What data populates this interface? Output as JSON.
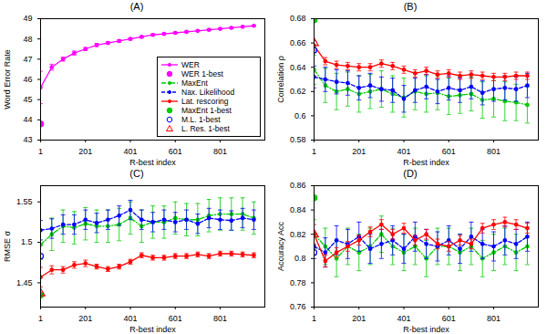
{
  "chart_data": [
    {
      "type": "line",
      "title": "(A)",
      "x_label": "R-best index",
      "y_label": "Word Error Rate",
      "xlim": [
        1,
        1000
      ],
      "xticks": [
        1,
        201,
        401,
        601,
        801
      ],
      "ylim": [
        43,
        49
      ],
      "yticks": [
        43,
        44,
        45,
        46,
        47,
        48,
        49
      ],
      "legend": "east",
      "x": [
        1,
        51,
        101,
        151,
        201,
        251,
        301,
        351,
        401,
        451,
        501,
        551,
        601,
        651,
        701,
        751,
        801,
        851,
        901,
        951
      ],
      "series": [
        {
          "name": "WER",
          "color": "#ff00ff",
          "line_style": "solid",
          "marker": "circle",
          "values": [
            45.6,
            46.6,
            47.0,
            47.3,
            47.5,
            47.7,
            47.8,
            47.9,
            48.0,
            48.1,
            48.2,
            48.25,
            48.3,
            48.35,
            48.4,
            48.45,
            48.5,
            48.55,
            48.6,
            48.65
          ],
          "errors": [
            0.8,
            0.15,
            0.1,
            0.1,
            0.08,
            0.08,
            0.06,
            0.06,
            0.05,
            0.05,
            0.05,
            0.04,
            0.04,
            0.04,
            0.03,
            0.03,
            0.03,
            0.03,
            0.02,
            0.02
          ]
        },
        {
          "name": "WER 1-best",
          "type": "scatter",
          "color": "#ff00ff",
          "marker": "circle",
          "x": [
            1
          ],
          "values": [
            43.8
          ]
        }
      ]
    },
    {
      "type": "line",
      "title": "(B)",
      "x_label": "R-best index",
      "y_label": "Correlation ρ",
      "xlim": [
        1,
        1000
      ],
      "xticks": [
        1,
        201,
        401,
        601,
        801
      ],
      "ylim": [
        0.58,
        0.68
      ],
      "yticks": [
        0.58,
        0.6,
        0.62,
        0.64,
        0.66,
        0.68
      ],
      "x": [
        1,
        51,
        101,
        151,
        201,
        251,
        301,
        351,
        401,
        451,
        501,
        551,
        601,
        651,
        701,
        751,
        801,
        851,
        901,
        951
      ],
      "series": [
        {
          "name": "MaxEnt",
          "color": "#00cc00",
          "line_style": "dashdot",
          "marker": "circle",
          "values": [
            0.638,
            0.625,
            0.62,
            0.622,
            0.618,
            0.62,
            0.622,
            0.618,
            0.615,
            0.62,
            0.618,
            0.619,
            0.616,
            0.617,
            0.618,
            0.613,
            0.614,
            0.612,
            0.611,
            0.609
          ],
          "errors": [
            0.012,
            0.014,
            0.015,
            0.014,
            0.015,
            0.014,
            0.015,
            0.015,
            0.016,
            0.015,
            0.015,
            0.014,
            0.015,
            0.015,
            0.014,
            0.015,
            0.015,
            0.016,
            0.015,
            0.015
          ]
        },
        {
          "name": "Nax. Likelihood",
          "color": "#0000ff",
          "line_style": "dashed",
          "marker": "circle",
          "values": [
            0.632,
            0.63,
            0.628,
            0.627,
            0.623,
            0.625,
            0.622,
            0.621,
            0.614,
            0.621,
            0.624,
            0.62,
            0.623,
            0.621,
            0.624,
            0.619,
            0.622,
            0.623,
            0.622,
            0.625
          ],
          "errors": [
            0.009,
            0.01,
            0.01,
            0.01,
            0.01,
            0.01,
            0.01,
            0.01,
            0.011,
            0.01,
            0.01,
            0.01,
            0.01,
            0.01,
            0.01,
            0.01,
            0.01,
            0.01,
            0.01,
            0.01
          ]
        },
        {
          "name": "Lat. rescoring",
          "color": "#ff0000",
          "line_style": "solid",
          "marker": "circle",
          "values": [
            0.658,
            0.645,
            0.642,
            0.641,
            0.64,
            0.64,
            0.643,
            0.641,
            0.638,
            0.635,
            0.637,
            0.634,
            0.635,
            0.633,
            0.634,
            0.633,
            0.632,
            0.632,
            0.633,
            0.633
          ],
          "errors": [
            0.004,
            0.003,
            0.003,
            0.003,
            0.003,
            0.003,
            0.003,
            0.003,
            0.003,
            0.003,
            0.003,
            0.003,
            0.003,
            0.003,
            0.003,
            0.003,
            0.003,
            0.003,
            0.003,
            0.003
          ]
        },
        {
          "name": "MaxEnt 1-best",
          "type": "scatter",
          "color": "#00cc00",
          "marker": "circle",
          "x": [
            1
          ],
          "values": [
            0.679
          ]
        },
        {
          "name": "M.L. 1-best",
          "type": "scatter",
          "color": "#0000ff",
          "marker": "open-circle",
          "x": [
            1
          ],
          "values": [
            0.654
          ]
        },
        {
          "name": "L. Res. 1-best",
          "type": "scatter",
          "color": "#ff0000",
          "marker": "open-triangle",
          "x": [
            1
          ],
          "values": [
            0.66
          ]
        }
      ]
    },
    {
      "type": "line",
      "title": "(C)",
      "x_label": "R-best index",
      "y_label": "RMSE σ",
      "xlim": [
        1,
        1000
      ],
      "xticks": [
        1,
        201,
        401,
        601,
        801
      ],
      "ylim": [
        1.42,
        1.57
      ],
      "yticks": [
        1.45,
        1.5,
        1.55
      ],
      "x": [
        1,
        51,
        101,
        151,
        201,
        251,
        301,
        351,
        401,
        451,
        501,
        551,
        601,
        651,
        701,
        751,
        801,
        851,
        901,
        951
      ],
      "series": [
        {
          "name": "MaxEnt",
          "color": "#00cc00",
          "line_style": "dashdot",
          "marker": "circle",
          "values": [
            1.497,
            1.51,
            1.52,
            1.518,
            1.523,
            1.52,
            1.52,
            1.522,
            1.53,
            1.52,
            1.525,
            1.525,
            1.53,
            1.528,
            1.528,
            1.533,
            1.535,
            1.535,
            1.535,
            1.53
          ],
          "errors": [
            0.018,
            0.02,
            0.02,
            0.02,
            0.02,
            0.02,
            0.02,
            0.02,
            0.02,
            0.02,
            0.02,
            0.02,
            0.02,
            0.02,
            0.02,
            0.02,
            0.02,
            0.02,
            0.02,
            0.02
          ]
        },
        {
          "name": "Nax. Likelihood",
          "color": "#0000ff",
          "line_style": "dashed",
          "marker": "circle",
          "values": [
            1.515,
            1.517,
            1.522,
            1.522,
            1.528,
            1.524,
            1.528,
            1.533,
            1.54,
            1.528,
            1.525,
            1.528,
            1.525,
            1.528,
            1.523,
            1.53,
            1.528,
            1.527,
            1.53,
            1.528
          ],
          "errors": [
            0.012,
            0.012,
            0.012,
            0.012,
            0.012,
            0.012,
            0.012,
            0.012,
            0.012,
            0.012,
            0.012,
            0.012,
            0.012,
            0.012,
            0.012,
            0.012,
            0.012,
            0.012,
            0.012,
            0.012
          ]
        },
        {
          "name": "Lat. rescoring",
          "color": "#ff0000",
          "line_style": "solid",
          "marker": "circle",
          "values": [
            1.457,
            1.466,
            1.466,
            1.472,
            1.474,
            1.47,
            1.467,
            1.47,
            1.476,
            1.484,
            1.481,
            1.481,
            1.483,
            1.483,
            1.485,
            1.483,
            1.486,
            1.486,
            1.485,
            1.484
          ],
          "errors": [
            0.012,
            0.005,
            0.004,
            0.004,
            0.004,
            0.003,
            0.003,
            0.003,
            0.003,
            0.003,
            0.003,
            0.003,
            0.003,
            0.003,
            0.003,
            0.003,
            0.003,
            0.003,
            0.003,
            0.003
          ]
        },
        {
          "name": "MaxEnt 1-best",
          "type": "scatter",
          "color": "#00cc00",
          "marker": "circle",
          "x": [
            1
          ],
          "values": [
            1.435
          ]
        },
        {
          "name": "M.L. 1-best",
          "type": "scatter",
          "color": "#0000ff",
          "marker": "open-circle",
          "x": [
            1
          ],
          "values": [
            1.483
          ]
        },
        {
          "name": "L. Res. 1-best",
          "type": "scatter",
          "color": "#ff0000",
          "marker": "open-triangle",
          "x": [
            1
          ],
          "values": [
            1.437
          ]
        }
      ]
    },
    {
      "type": "line",
      "title": "(D)",
      "x_label": "R-best index",
      "y_label": "Accuracy Acc",
      "xlim": [
        1,
        1000
      ],
      "xticks": [
        1,
        201,
        401,
        601,
        801
      ],
      "ylim": [
        0.76,
        0.86
      ],
      "yticks": [
        0.76,
        0.78,
        0.8,
        0.82,
        0.84,
        0.86
      ],
      "x": [
        1,
        51,
        101,
        151,
        201,
        251,
        301,
        351,
        401,
        451,
        501,
        551,
        601,
        651,
        701,
        751,
        801,
        851,
        901,
        951
      ],
      "series": [
        {
          "name": "MaxEnt",
          "color": "#00cc00",
          "line_style": "dashdot",
          "marker": "circle",
          "values": [
            0.82,
            0.81,
            0.8,
            0.81,
            0.805,
            0.81,
            0.82,
            0.81,
            0.805,
            0.81,
            0.8,
            0.81,
            0.81,
            0.805,
            0.81,
            0.8,
            0.805,
            0.81,
            0.805,
            0.81
          ],
          "errors": [
            0.012,
            0.015,
            0.015,
            0.015,
            0.015,
            0.015,
            0.015,
            0.015,
            0.015,
            0.015,
            0.015,
            0.015,
            0.015,
            0.015,
            0.015,
            0.015,
            0.015,
            0.015,
            0.015,
            0.015
          ]
        },
        {
          "name": "Nax. Likelihood",
          "color": "#0000ff",
          "line_style": "dashed",
          "marker": "circle",
          "values": [
            0.81,
            0.805,
            0.815,
            0.812,
            0.818,
            0.808,
            0.812,
            0.815,
            0.808,
            0.818,
            0.812,
            0.81,
            0.815,
            0.808,
            0.818,
            0.812,
            0.81,
            0.815,
            0.812,
            0.818
          ],
          "errors": [
            0.01,
            0.012,
            0.012,
            0.012,
            0.012,
            0.012,
            0.012,
            0.012,
            0.012,
            0.012,
            0.012,
            0.012,
            0.012,
            0.012,
            0.012,
            0.012,
            0.012,
            0.012,
            0.012,
            0.012
          ]
        },
        {
          "name": "Lat. rescoring",
          "color": "#ff0000",
          "line_style": "solid",
          "marker": "circle",
          "values": [
            0.82,
            0.798,
            0.805,
            0.81,
            0.815,
            0.822,
            0.828,
            0.82,
            0.825,
            0.815,
            0.82,
            0.812,
            0.81,
            0.815,
            0.812,
            0.825,
            0.828,
            0.83,
            0.828,
            0.825
          ],
          "errors": [
            0.008,
            0.005,
            0.004,
            0.004,
            0.004,
            0.004,
            0.004,
            0.004,
            0.004,
            0.004,
            0.004,
            0.004,
            0.004,
            0.004,
            0.004,
            0.004,
            0.004,
            0.004,
            0.004,
            0.004
          ]
        },
        {
          "name": "MaxEnt 1-best",
          "type": "scatter",
          "color": "#00cc00",
          "marker": "circle",
          "x": [
            1
          ],
          "values": [
            0.85
          ]
        },
        {
          "name": "M.L. 1-best",
          "type": "scatter",
          "color": "#0000ff",
          "marker": "open-circle",
          "x": [
            1
          ],
          "values": [
            0.805
          ]
        },
        {
          "name": "L. Res. 1-best",
          "type": "scatter",
          "color": "#ff0000",
          "marker": "open-triangle",
          "x": [
            1
          ],
          "values": [
            0.82
          ]
        }
      ]
    }
  ]
}
